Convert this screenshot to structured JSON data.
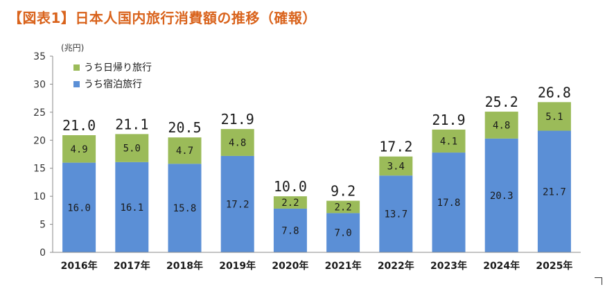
{
  "title": "【図表1】日本人国内旅行消費額の推移（確報）",
  "chart_data": {
    "type": "bar",
    "stacked": true,
    "title": "【図表1】日本人国内旅行消費額の推移（確報）",
    "unit": "(兆円)",
    "categories": [
      "2016年",
      "2017年",
      "2018年",
      "2019年",
      "2020年",
      "2021年",
      "2022年",
      "2023年",
      "2024年",
      "2025年"
    ],
    "series": [
      {
        "name": "うち宿泊旅行",
        "color": "#5b8fd6",
        "values": [
          16.0,
          16.1,
          15.8,
          17.2,
          7.8,
          7.0,
          13.7,
          17.8,
          20.3,
          21.7
        ],
        "labels": [
          "16.0",
          "16.1",
          "15.8",
          "17.2",
          "7.8",
          "7.0",
          "13.7",
          "17.8",
          "20.3",
          "21.7"
        ]
      },
      {
        "name": "うち日帰り旅行",
        "color": "#9bbb59",
        "values": [
          4.9,
          5.0,
          4.7,
          4.8,
          2.2,
          2.2,
          3.4,
          4.1,
          4.8,
          5.1
        ],
        "labels": [
          "4.9",
          "5.0",
          "4.7",
          "4.8",
          "2.2",
          "2.2",
          "3.4",
          "4.1",
          "4.8",
          "5.1"
        ]
      }
    ],
    "totals": [
      "21.0",
      "21.1",
      "20.5",
      "21.9",
      "10.0",
      "9.2",
      "17.2",
      "21.9",
      "25.2",
      "26.8"
    ],
    "ylim": [
      0,
      35
    ],
    "yticks": [
      0,
      5,
      10,
      15,
      20,
      25,
      30,
      35
    ],
    "grid": false,
    "legend_position": "top-left"
  }
}
